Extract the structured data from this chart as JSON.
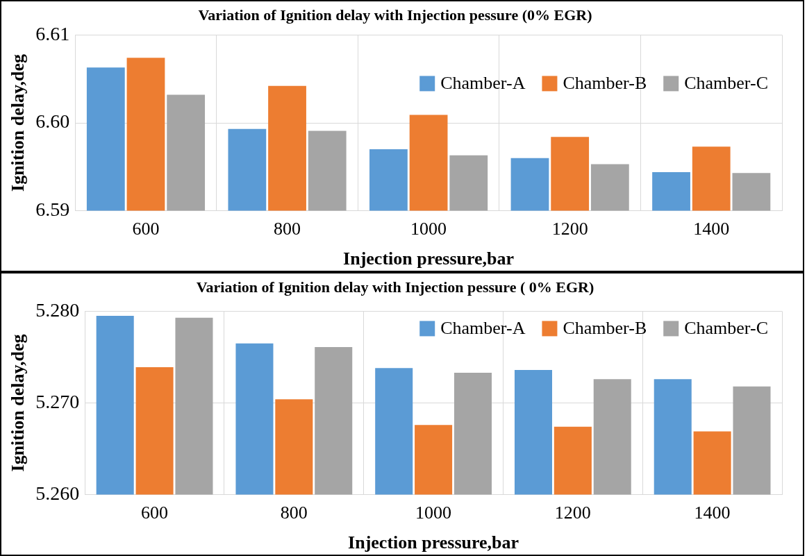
{
  "chart_data": [
    {
      "type": "bar",
      "title": "Variation of Ignition delay with Injection pessure (0% EGR)",
      "xlabel": "Injection pressure,bar",
      "ylabel": "Ignition delay,deg",
      "categories": [
        "600",
        "800",
        "1000",
        "1200",
        "1400"
      ],
      "series": [
        {
          "name": "Chamber-A",
          "color": "#5b9bd5",
          "values": [
            6.6063,
            6.5993,
            6.597,
            6.596,
            6.5944
          ]
        },
        {
          "name": "Chamber-B",
          "color": "#ed7d31",
          "values": [
            6.6074,
            6.6042,
            6.6009,
            6.5984,
            6.5973
          ]
        },
        {
          "name": "Chamber-C",
          "color": "#a5a5a5",
          "values": [
            6.6032,
            6.5991,
            6.5963,
            6.5953,
            6.5943
          ]
        }
      ],
      "ylim": [
        6.59,
        6.61
      ],
      "yticks": [
        {
          "value": 6.59,
          "label": "6.59"
        },
        {
          "value": 6.6,
          "label": "6.60"
        },
        {
          "value": 6.61,
          "label": "6.61"
        }
      ],
      "grid": true,
      "legend": "top right"
    },
    {
      "type": "bar",
      "title": "Variation of Ignition delay with Injection pessure ( 0% EGR)",
      "xlabel": "Injection pressure,bar",
      "ylabel": "Ignition delay,deg",
      "categories": [
        "600",
        "800",
        "1000",
        "1200",
        "1400"
      ],
      "series": [
        {
          "name": "Chamber-A",
          "color": "#5b9bd5",
          "values": [
            5.2795,
            5.2765,
            5.2738,
            5.2736,
            5.2726
          ]
        },
        {
          "name": "Chamber-B",
          "color": "#ed7d31",
          "values": [
            5.2739,
            5.2704,
            5.2676,
            5.2674,
            5.2669
          ]
        },
        {
          "name": "Chamber-C",
          "color": "#a5a5a5",
          "values": [
            5.2793,
            5.2761,
            5.2733,
            5.2726,
            5.2718
          ]
        }
      ],
      "ylim": [
        5.26,
        5.28
      ],
      "yticks": [
        {
          "value": 5.26,
          "label": "5.260"
        },
        {
          "value": 5.27,
          "label": "5.270"
        },
        {
          "value": 5.28,
          "label": "5.280"
        }
      ],
      "grid": true,
      "legend": "top right"
    }
  ]
}
